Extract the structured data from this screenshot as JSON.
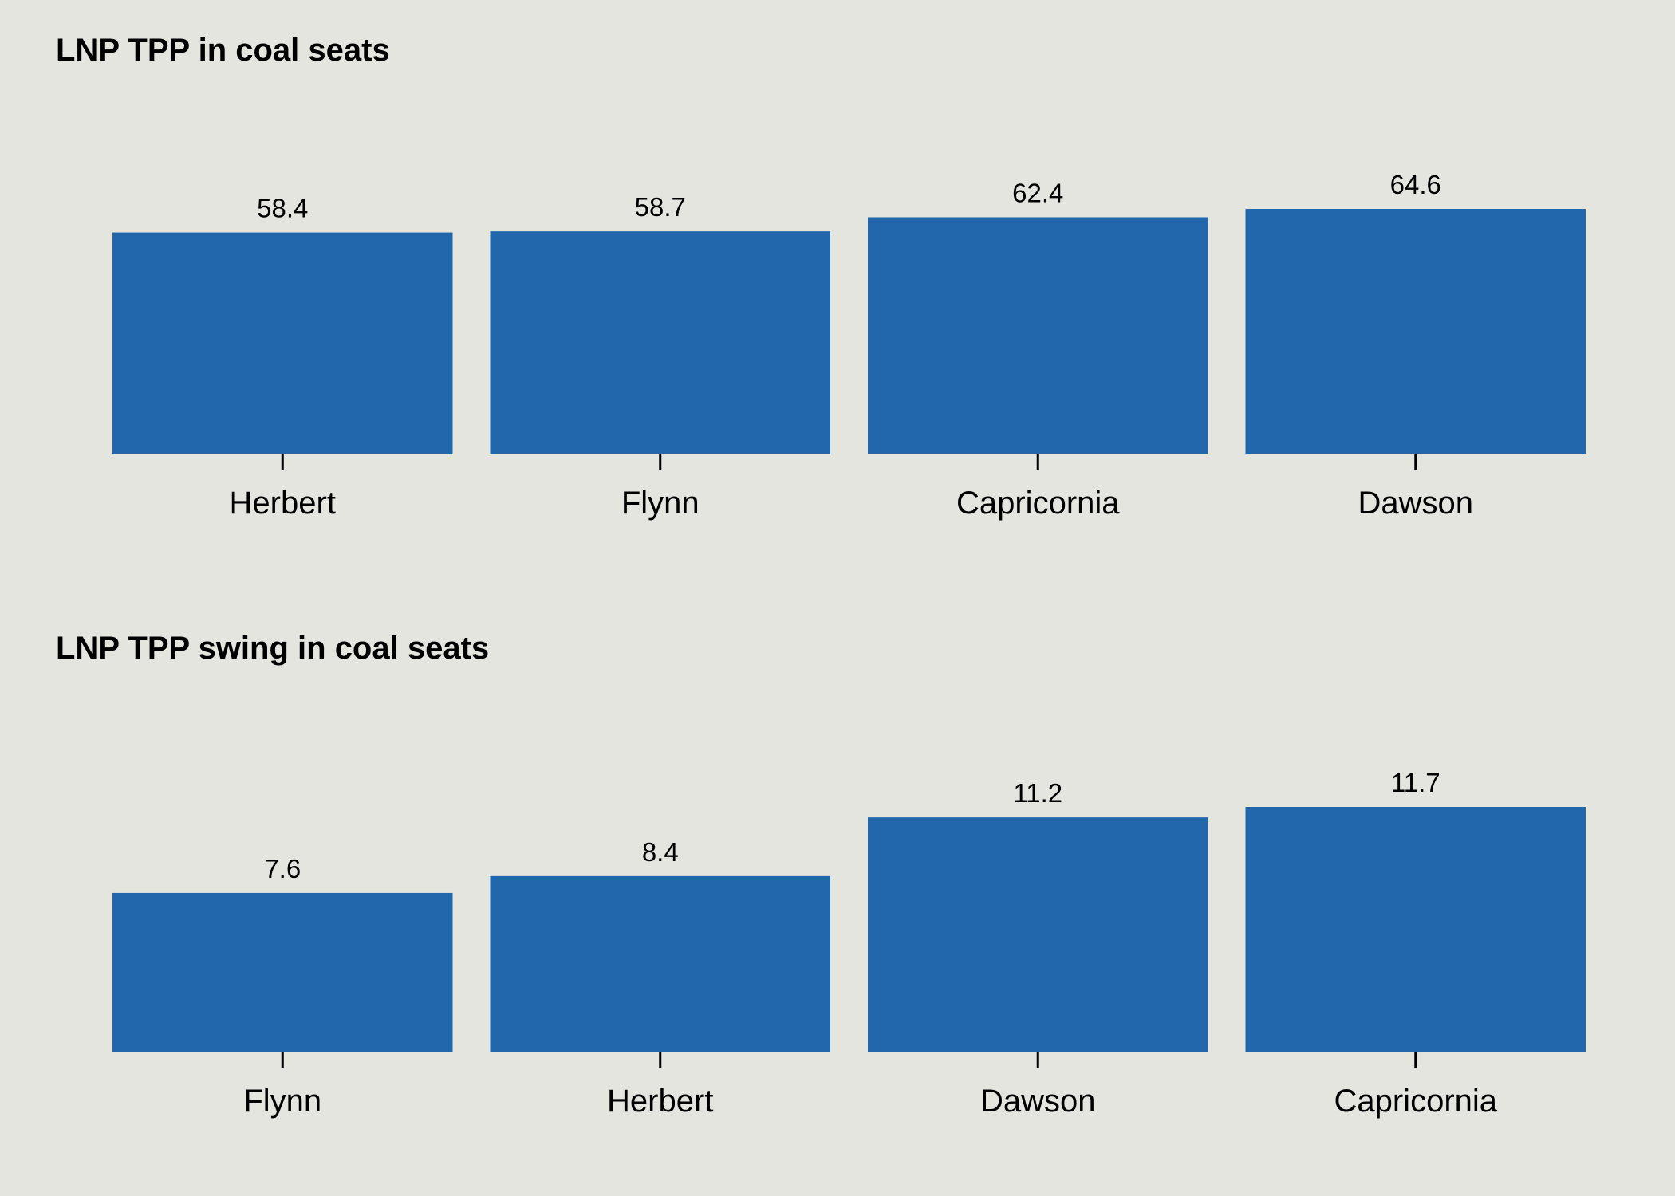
{
  "colors": {
    "background": "#e5e5e0",
    "bar": "#2266ac",
    "text": "#000000"
  },
  "chart_data": [
    {
      "type": "bar",
      "title": "LNP TPP in coal seats",
      "xlabel": "",
      "ylabel": "",
      "categories": [
        "Herbert",
        "Flynn",
        "Capricornia",
        "Dawson"
      ],
      "values": [
        58.4,
        58.7,
        62.4,
        64.6
      ],
      "data_labels": [
        "58.4",
        "58.7",
        "62.4",
        "64.6"
      ],
      "ylim": [
        0,
        64.6
      ],
      "grid": false,
      "legend": "none"
    },
    {
      "type": "bar",
      "title": "LNP TPP swing in coal seats",
      "xlabel": "",
      "ylabel": "",
      "categories": [
        "Flynn",
        "Herbert",
        "Dawson",
        "Capricornia"
      ],
      "values": [
        7.6,
        8.4,
        11.2,
        11.7
      ],
      "data_labels": [
        "7.6",
        "8.4",
        "11.2",
        "11.7"
      ],
      "ylim": [
        0,
        11.7
      ],
      "grid": false,
      "legend": "none"
    }
  ]
}
